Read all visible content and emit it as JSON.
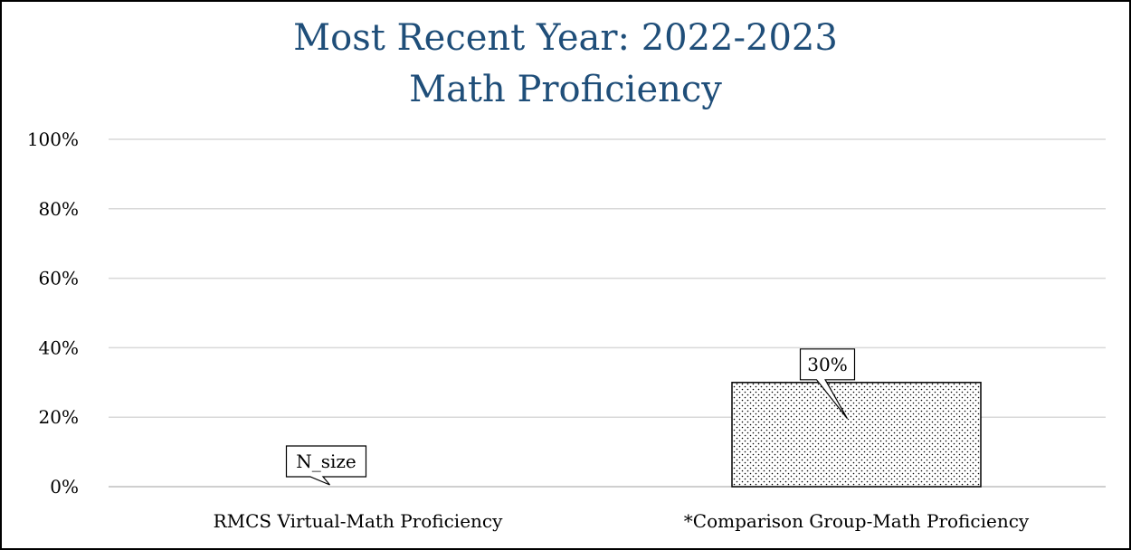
{
  "chart_data": {
    "type": "bar",
    "title": [
      "Most Recent Year: 2022-2023",
      "Math Proficiency"
    ],
    "categories": [
      "RMCS Virtual-Math Proficiency",
      "*Comparison Group-Math Proficiency"
    ],
    "values": [
      null,
      30
    ],
    "data_labels": [
      "N_size",
      "30%"
    ],
    "y_ticks": [
      "0%",
      "20%",
      "40%",
      "60%",
      "80%",
      "100%"
    ],
    "ylim": [
      0,
      100
    ],
    "grid": true,
    "legend": "none",
    "colors": {
      "title": "#1f4e79",
      "grid": "#d9d9d9",
      "bar_outline": "#000000",
      "bar_pattern": "#000000",
      "border": "#000000"
    }
  }
}
